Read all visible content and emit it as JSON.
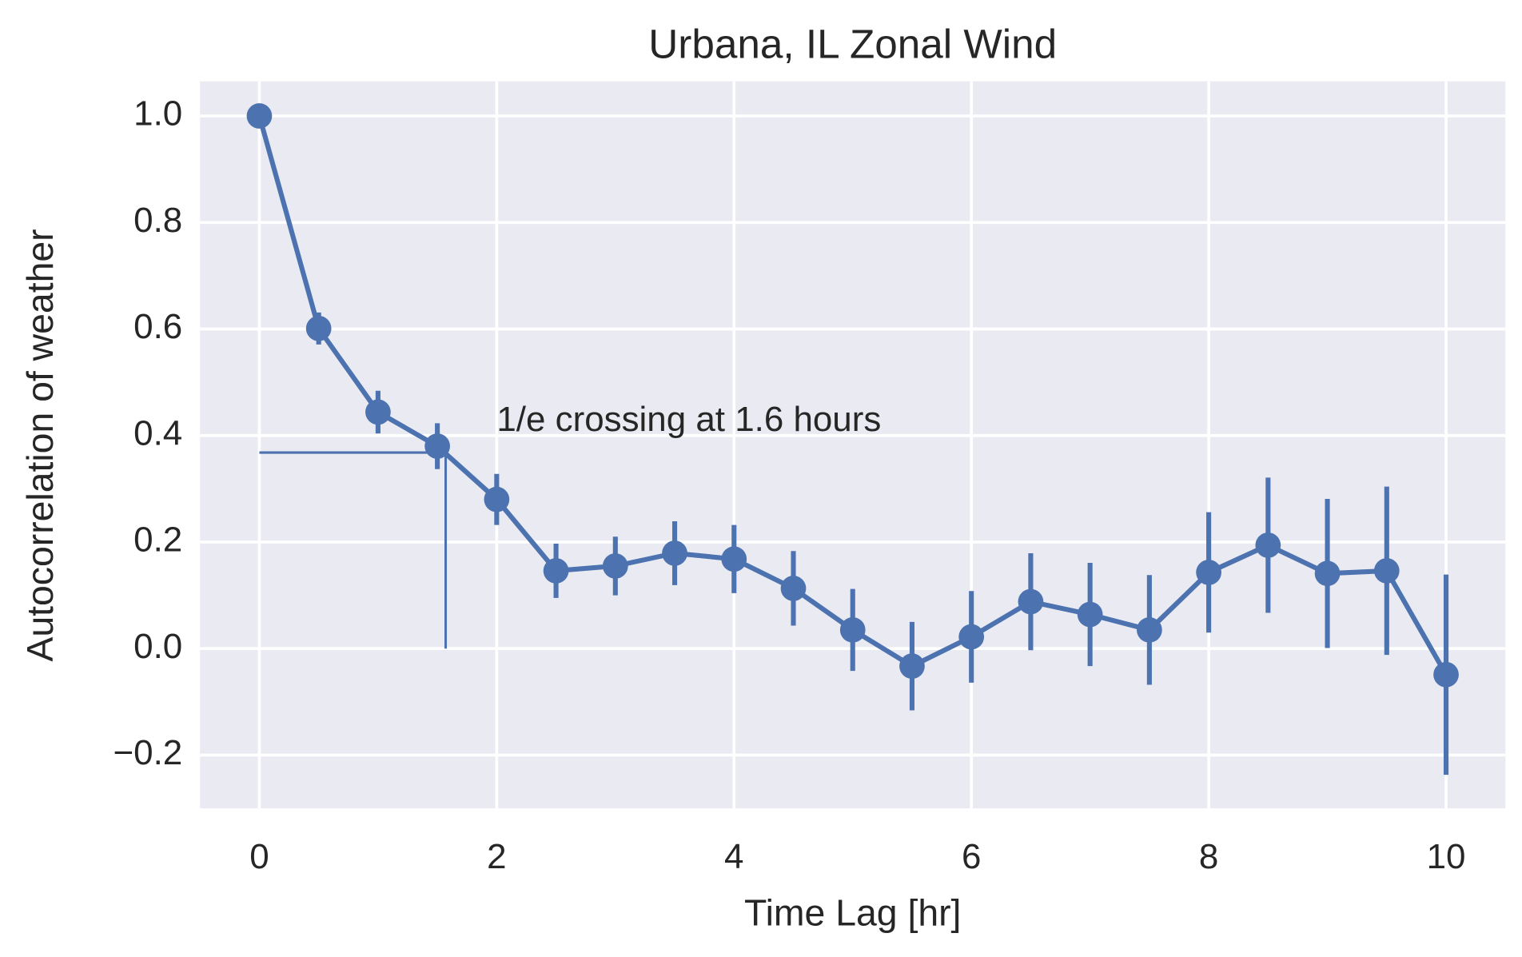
{
  "chart_data": {
    "type": "line",
    "title": "Urbana, IL Zonal Wind",
    "xlabel": "Time Lag [hr]",
    "ylabel": "Autocorrelation of weather",
    "annotation": {
      "text": "1/e crossing at 1.6 hours",
      "x": 2,
      "y": 0.4
    },
    "reference_lines": {
      "x": 1.57,
      "y": 0.368
    },
    "x": [
      0,
      0.5,
      1,
      1.5,
      2,
      2.5,
      3,
      3.5,
      4,
      4.5,
      5,
      5.5,
      6,
      6.5,
      7,
      7.5,
      8,
      8.5,
      9,
      9.5,
      10
    ],
    "values": [
      1.0,
      0.601,
      0.444,
      0.38,
      0.28,
      0.146,
      0.155,
      0.179,
      0.168,
      0.113,
      0.035,
      -0.033,
      0.022,
      0.088,
      0.064,
      0.035,
      0.143,
      0.194,
      0.141,
      0.146,
      -0.049
    ],
    "errors": [
      0,
      0.03,
      0.04,
      0.043,
      0.048,
      0.051,
      0.055,
      0.06,
      0.064,
      0.07,
      0.077,
      0.083,
      0.086,
      0.091,
      0.097,
      0.103,
      0.113,
      0.127,
      0.14,
      0.158,
      0.188
    ],
    "color": "#4c72b0",
    "xlim": [
      -0.5,
      10.5
    ],
    "ylim": [
      -0.3,
      1.065
    ],
    "xticks": [
      0,
      2,
      4,
      6,
      8,
      10
    ],
    "yticks": [
      {
        "value": -0.2,
        "label": "−0.2"
      },
      {
        "value": 0,
        "label": "0.0"
      },
      0.2,
      0.4,
      0.6,
      0.8,
      {
        "value": 1,
        "label": "1.0"
      }
    ],
    "grid": true
  }
}
